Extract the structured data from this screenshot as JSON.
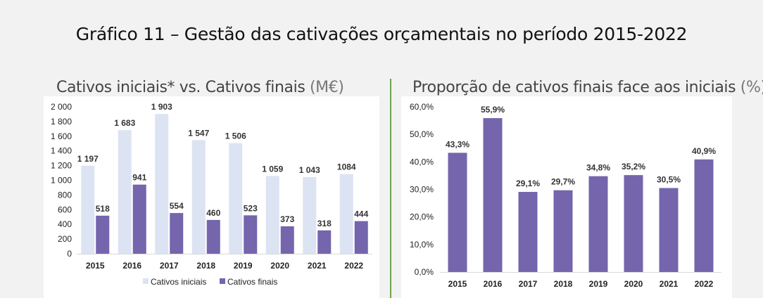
{
  "page": {
    "title": "Gráfico 11 – Gestão das cativações orçamentais no período 2015-2022"
  },
  "colors": {
    "initial": "#dce3f3",
    "final": "#7465ad",
    "proportion": "#7465ad",
    "divider": "#6ea54b"
  },
  "chart_data": [
    {
      "type": "bar",
      "title": "Cativos iniciais* vs. Cativos finais",
      "unit": "(M€)",
      "categories": [
        "2015",
        "2016",
        "2017",
        "2018",
        "2019",
        "2020",
        "2021",
        "2022"
      ],
      "series": [
        {
          "name": "Cativos iniciais",
          "values": [
            1197,
            1683,
            1903,
            1547,
            1506,
            1059,
            1043,
            1084
          ],
          "labels": [
            "1 197",
            "1 683",
            "1 903",
            "1 547",
            "1 506",
            "1 059",
            "1 043",
            "1084"
          ]
        },
        {
          "name": "Cativos finais",
          "values": [
            518,
            941,
            554,
            460,
            523,
            373,
            318,
            444
          ],
          "labels": [
            "518",
            "941",
            "554",
            "460",
            "523",
            "373",
            "318",
            "444"
          ]
        }
      ],
      "ylim": [
        0,
        2000
      ],
      "yticks": [
        0,
        200,
        400,
        600,
        800,
        1000,
        1200,
        1400,
        1600,
        1800,
        2000
      ],
      "ytick_labels": [
        "0",
        "200",
        "400",
        "600",
        "800",
        "1 000",
        "1 200",
        "1 400",
        "1 600",
        "1 800",
        "2 000"
      ],
      "legend": "bottom",
      "grid": false
    },
    {
      "type": "bar",
      "title": "Proporção de cativos finais face aos iniciais",
      "unit": "(%)",
      "categories": [
        "2015",
        "2016",
        "2017",
        "2018",
        "2019",
        "2020",
        "2021",
        "2022"
      ],
      "values": [
        43.3,
        55.9,
        29.1,
        29.7,
        34.8,
        35.2,
        30.5,
        40.9
      ],
      "labels": [
        "43,3%",
        "55,9%",
        "29,1%",
        "29,7%",
        "34,8%",
        "35,2%",
        "30,5%",
        "40,9%"
      ],
      "ylim": [
        0,
        60
      ],
      "yticks": [
        0,
        10,
        20,
        30,
        40,
        50,
        60
      ],
      "ytick_labels": [
        "0,0%",
        "10,0%",
        "20,0%",
        "30,0%",
        "40,0%",
        "50,0%",
        "60,0%"
      ],
      "grid": false
    }
  ]
}
